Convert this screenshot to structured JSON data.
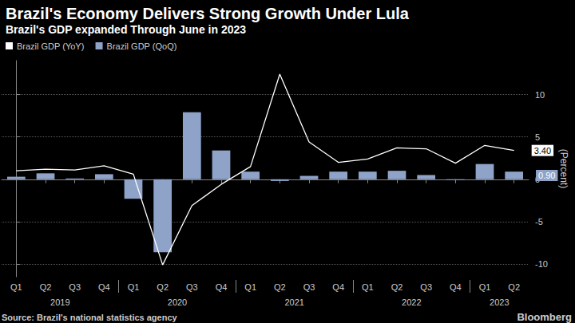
{
  "chart_data": {
    "type": "bar",
    "title": "Brazil's Economy Delivers Strong Growth Under Lula",
    "subtitle": "Brazil's GDP expanded Through June in 2023",
    "y_label": "(Percent)",
    "source": "Source: Brazil's national statistics agency",
    "annotations": [
      "Bloomberg"
    ],
    "categories": [
      "Q1",
      "Q2",
      "Q3",
      "Q4",
      "Q1",
      "Q2",
      "Q3",
      "Q4",
      "Q1",
      "Q2",
      "Q3",
      "Q4",
      "Q1",
      "Q2",
      "Q3",
      "Q4",
      "Q1",
      "Q2"
    ],
    "category_groups": [
      "2019",
      "2019",
      "2019",
      "2019",
      "2020",
      "2020",
      "2020",
      "2020",
      "2021",
      "2021",
      "2021",
      "2021",
      "2022",
      "2022",
      "2022",
      "2022",
      "2023",
      "2023"
    ],
    "series": [
      {
        "name": "Brazil GDP (YoY)",
        "type": "line",
        "color": "#ffffff",
        "values": [
          1.0,
          1.2,
          1.1,
          1.6,
          0.6,
          -10.1,
          -3.1,
          -0.6,
          1.5,
          12.4,
          4.4,
          2.0,
          2.4,
          3.7,
          3.6,
          1.9,
          4.0,
          3.4
        ],
        "value_labels": [
          null,
          null,
          null,
          null,
          null,
          null,
          null,
          null,
          null,
          null,
          null,
          null,
          null,
          null,
          null,
          null,
          null,
          "3.40"
        ]
      },
      {
        "name": "Brazil GDP (QoQ)",
        "type": "bar",
        "color": "#8fa3c9",
        "values": [
          0.3,
          0.7,
          0.1,
          0.6,
          -2.3,
          -8.6,
          7.9,
          3.4,
          0.9,
          -0.2,
          0.4,
          0.9,
          0.9,
          1.0,
          0.5,
          -0.1,
          1.8,
          0.9
        ],
        "value_labels": [
          null,
          null,
          null,
          null,
          null,
          null,
          null,
          null,
          null,
          null,
          null,
          null,
          null,
          null,
          null,
          null,
          null,
          "0.90"
        ]
      }
    ],
    "ylim": [
      -11.5,
      14
    ],
    "yticks": [
      -10,
      -5,
      0,
      5,
      10
    ],
    "grid": true,
    "legend": "top-left"
  }
}
